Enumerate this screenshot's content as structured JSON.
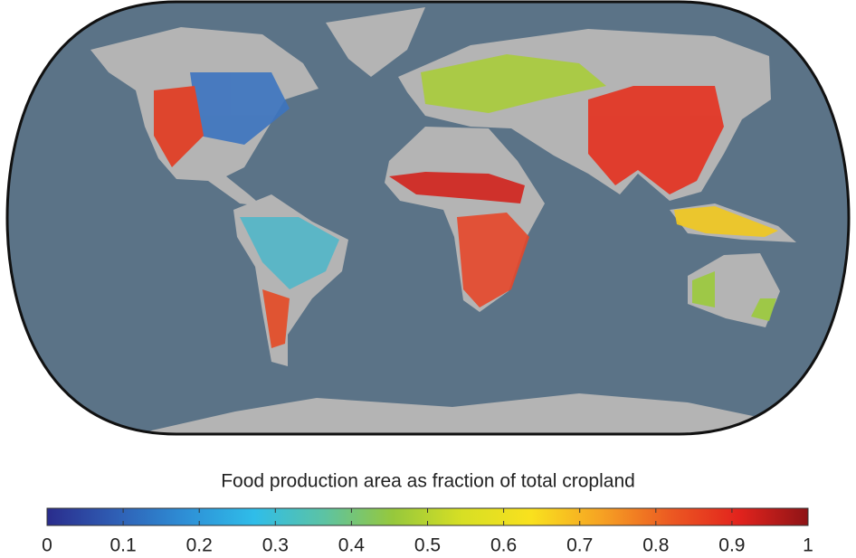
{
  "colorbar": {
    "title": "Food production area as fraction of total cropland",
    "range": [
      0,
      1
    ],
    "ticks": [
      0,
      0.1,
      0.2,
      0.3,
      0.4,
      0.5,
      0.6,
      0.7,
      0.8,
      0.9,
      1
    ],
    "colors": [
      "#2a2c8c",
      "#2f5fb5",
      "#2e8fd6",
      "#2fbde9",
      "#5cc3a4",
      "#96c83c",
      "#d7df24",
      "#f9e11e",
      "#f6a323",
      "#ec5a22",
      "#e2231d",
      "#8e1416"
    ]
  }
}
